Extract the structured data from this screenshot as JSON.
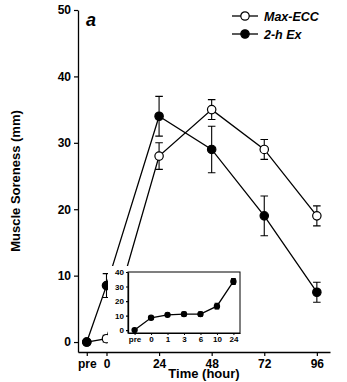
{
  "chart_data": [
    {
      "type": "line",
      "title": "a",
      "x_label": "Time (hour)",
      "y_label": "Muscle Soreness (mm)",
      "x": [
        -9,
        0,
        24,
        48,
        72,
        96
      ],
      "xlim": [
        -13,
        102
      ],
      "xticks": [
        {
          "value": -9,
          "label": "pre"
        },
        0,
        24,
        48,
        72,
        96
      ],
      "ylim": [
        -1.5,
        50
      ],
      "yticks": [
        0,
        10,
        20,
        30,
        40,
        50
      ],
      "grid": false,
      "legend": "upper right",
      "series": [
        {
          "name": "Max-ECC",
          "color": "#000000",
          "marker": "circle-open",
          "line_style": "solid",
          "values": [
            0,
            0.5,
            28,
            35,
            29,
            19
          ],
          "errors": [
            0,
            0.5,
            2,
            1.5,
            1.5,
            1.5
          ]
        },
        {
          "name": "2-h Ex",
          "color": "#000000",
          "marker": "circle",
          "line_style": "solid",
          "values": [
            0,
            8.5,
            34,
            29,
            19,
            7.5
          ],
          "errors": [
            0,
            1.8,
            3,
            3.5,
            3,
            1.5
          ]
        }
      ]
    },
    {
      "type": "line",
      "categories": [
        "pre",
        "0",
        "1",
        "3",
        "6",
        "10",
        "24"
      ],
      "ylim": [
        -2,
        40
      ],
      "yticks": [
        0,
        10,
        20,
        30,
        40
      ],
      "grid": false,
      "series": [
        {
          "color": "#000000",
          "marker": "circle",
          "line_style": "solid",
          "values": [
            0,
            8.5,
            10.5,
            11,
            11,
            16.5,
            33.5
          ],
          "errors": [
            0,
            1,
            1,
            1.5,
            1.5,
            2,
            2
          ]
        }
      ]
    }
  ]
}
